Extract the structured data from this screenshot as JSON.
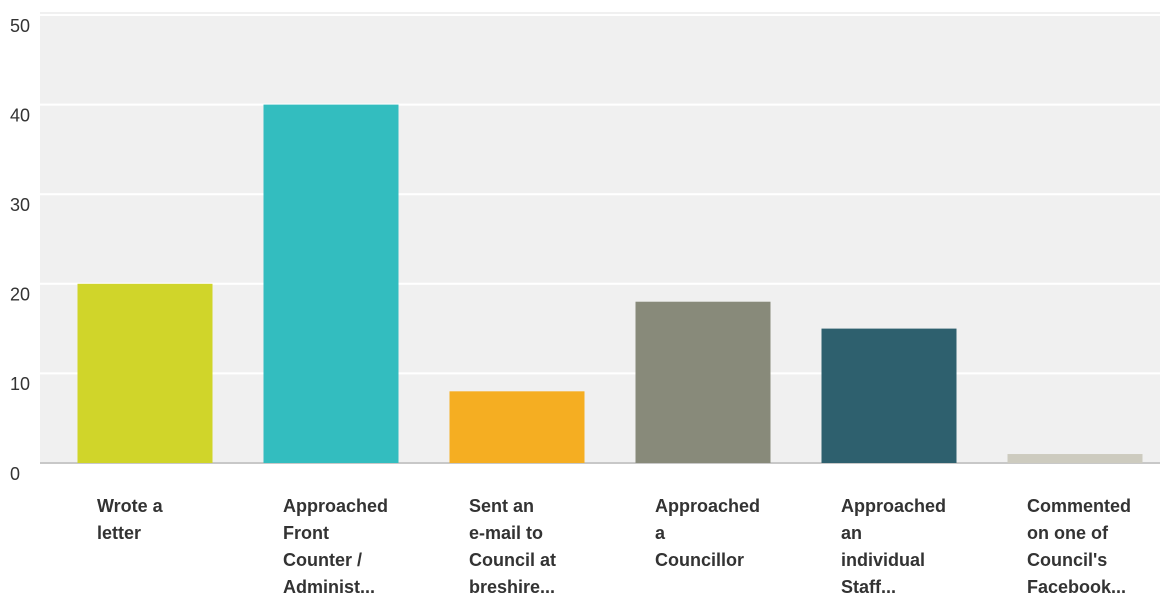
{
  "chart_data": {
    "type": "bar",
    "categories": [
      "Wrote a letter",
      "Approached Front Counter / Administ...",
      "Sent an e-mail to Council at breshire...",
      "Approached a Councillor",
      "Approached an individual Staff...",
      "Commented on one of Council's Facebook..."
    ],
    "values": [
      20,
      40,
      8,
      18,
      15,
      1
    ],
    "colors": [
      "#d0d52a",
      "#33bdbf",
      "#f5ae22",
      "#888a7a",
      "#2e606e",
      "#cdcbbf"
    ],
    "ylim": [
      0,
      50
    ],
    "yticks": [
      0,
      10,
      20,
      30,
      40,
      50
    ],
    "grid": true
  }
}
